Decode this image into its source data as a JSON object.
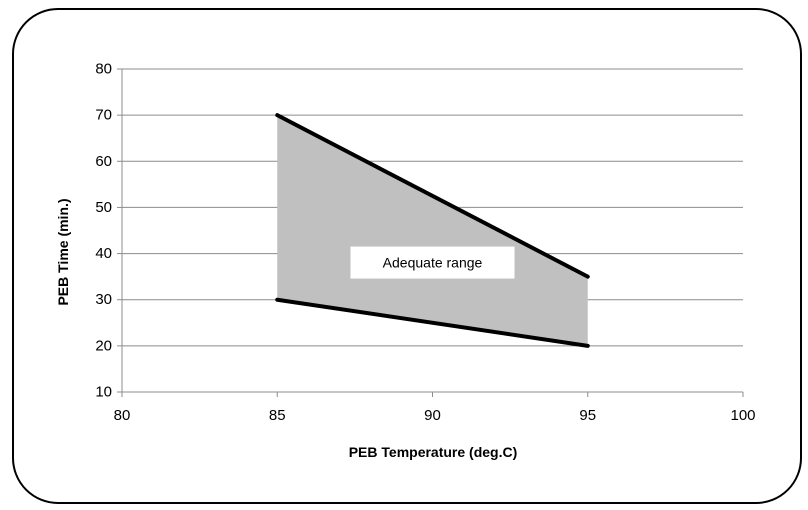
{
  "chart_data": {
    "type": "area",
    "xlabel": "PEB Temperature (deg.C)",
    "ylabel": "PEB Time (min.)",
    "xlim": [
      80,
      100
    ],
    "ylim": [
      10,
      80
    ],
    "x_ticks": [
      80,
      85,
      90,
      95,
      100
    ],
    "y_ticks": [
      10,
      20,
      30,
      40,
      50,
      60,
      70,
      80
    ],
    "grid": "horizontal",
    "series": [
      {
        "x": [
          85,
          95
        ],
        "values": [
          70,
          35
        ]
      },
      {
        "x": [
          85,
          95
        ],
        "values": [
          30,
          20
        ]
      }
    ],
    "band_fill_color": "#c0c0c0",
    "line_color": "#000000",
    "annotation": {
      "text": "Adequate range",
      "x": 90,
      "y": 40
    }
  }
}
